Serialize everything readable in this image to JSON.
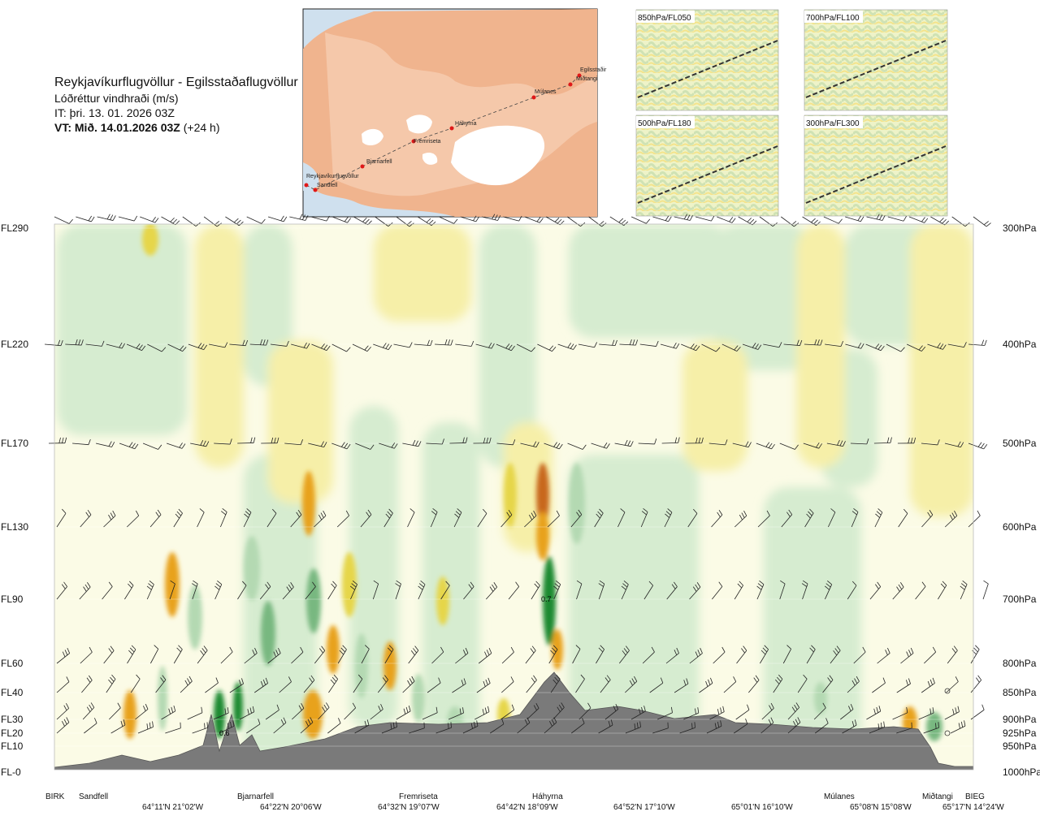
{
  "header": {
    "route": "Reykjavíkurflugvöllur - Egilsstaðaflugvöllur",
    "field": "Lóðréttur vindhraði (m/s)",
    "issue_time": "IT: þri. 13. 01. 2026 03Z",
    "valid_time_bold": "VT: Mið. 14.01.2026 03Z",
    "valid_time_lead": "(+24 h)"
  },
  "route_map": {
    "points": [
      "Reykjavíkurflugvöllur",
      "Sandfell",
      "Bjarnarfell",
      "Fremriseta",
      "Háhyrna",
      "Múlanes",
      "Miðtangi",
      "Egilsstaðir"
    ]
  },
  "insets": [
    {
      "label": "850hPa/FL050"
    },
    {
      "label": "700hPa/FL100"
    },
    {
      "label": "500hPa/FL180"
    },
    {
      "label": "300hPa/FL300"
    }
  ],
  "chart_data": {
    "type": "heatmap",
    "title": "Lóðréttur vindhraði (m/s)",
    "left_axis_levels": [
      {
        "label": "FL290",
        "hpa": 300
      },
      {
        "label": "FL220",
        "hpa": 400
      },
      {
        "label": "FL170",
        "hpa": 500
      },
      {
        "label": "FL130",
        "hpa": 600
      },
      {
        "label": "FL90",
        "hpa": 700
      },
      {
        "label": "FL60",
        "hpa": 800
      },
      {
        "label": "FL40",
        "hpa": 850
      },
      {
        "label": "FL30",
        "hpa": 900
      },
      {
        "label": "FL20",
        "hpa": 925
      },
      {
        "label": "FL10",
        "hpa": 950
      },
      {
        "label": "FL-0",
        "hpa": 1000
      }
    ],
    "right_axis_labels": [
      "300hPa",
      "400hPa",
      "500hPa",
      "600hPa",
      "700hPa",
      "800hPa",
      "850hPa",
      "900hPa",
      "925hPa",
      "950hPa",
      "1000hPa"
    ],
    "locations": [
      "BIRK",
      "Sandfell",
      "Bjarnarfell",
      "Fremriseta",
      "Háhyrna",
      "Múlanes",
      "Miðtangi",
      "BIEG"
    ],
    "coordinates": [
      "64°11'N 21°02'W",
      "64°22'N 20°06'W",
      "64°32'N 19°07'W",
      "64°42'N 18°09'W",
      "64°52'N 17°10'W",
      "65°01'N 16°10'W",
      "65°08'N 15°08'W",
      "65°17'N 14°24'W"
    ],
    "contour_labels": [
      "0.6",
      "0.7"
    ],
    "colors": {
      "strong_down": "#c8681e",
      "moderate_down": "#e8a21a",
      "weak_down": "#e6d64a",
      "slight_down": "#f6efa8",
      "near_zero": "#fbfbe6",
      "slight_up": "#d6ecd0",
      "weak_up": "#b4d9b2",
      "moderate_up": "#78b880",
      "strong_up": "#1e8a32",
      "terrain": "#7a7a7a"
    }
  }
}
